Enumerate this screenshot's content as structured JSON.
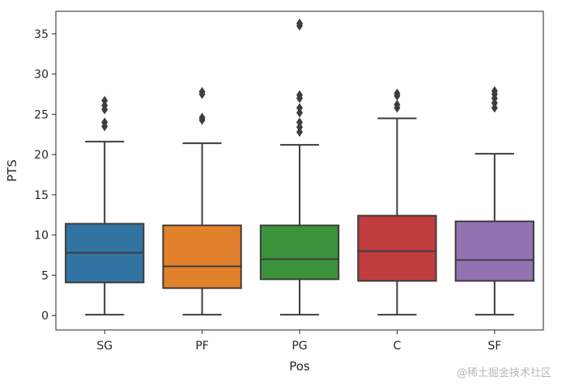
{
  "chart_data": {
    "type": "box",
    "xlabel": "Pos",
    "ylabel": "PTS",
    "ylim": [
      -1.8,
      37.8
    ],
    "yticks": [
      0,
      5,
      10,
      15,
      20,
      25,
      30,
      35
    ],
    "grid": false,
    "categories": [
      "SG",
      "PF",
      "PG",
      "C",
      "SF"
    ],
    "colors": [
      "#3274a1",
      "#e1812c",
      "#3a923a",
      "#c03d3e",
      "#9372b2"
    ],
    "boxes": [
      {
        "category": "SG",
        "whisker_low": 0.1,
        "q1": 4.1,
        "median": 7.8,
        "q3": 11.4,
        "whisker_high": 21.6,
        "outliers": [
          23.5,
          24.0,
          25.6,
          26.1,
          26.7
        ]
      },
      {
        "category": "PF",
        "whisker_low": 0.1,
        "q1": 3.4,
        "median": 6.1,
        "q3": 11.2,
        "whisker_high": 21.4,
        "outliers": [
          24.3,
          24.6,
          27.5,
          27.8
        ]
      },
      {
        "category": "PG",
        "whisker_low": 0.1,
        "q1": 4.5,
        "median": 7.0,
        "q3": 11.2,
        "whisker_high": 21.2,
        "outliers": [
          22.8,
          23.4,
          24.0,
          25.2,
          25.8,
          27.0,
          27.4,
          36.0,
          36.3
        ]
      },
      {
        "category": "C",
        "whisker_low": 0.1,
        "q1": 4.3,
        "median": 8.0,
        "q3": 12.4,
        "whisker_high": 24.5,
        "outliers": [
          25.8,
          26.2,
          27.3,
          27.6
        ]
      },
      {
        "category": "SF",
        "whisker_low": 0.1,
        "q1": 4.3,
        "median": 6.9,
        "q3": 11.7,
        "whisker_high": 20.1,
        "outliers": [
          25.8,
          26.4,
          27.0,
          27.5,
          27.9
        ]
      }
    ]
  },
  "watermark": "@稀土掘金技术社区"
}
